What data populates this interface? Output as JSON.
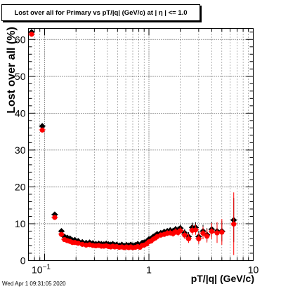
{
  "chart_data": {
    "type": "scatter",
    "title": "Lost over all for Primary vs pT/|q| (GeV/c) at |  η | <= 1.0",
    "xlabel": "pT/|q| (GeV/c)",
    "ylabel": "Lost over all (%)",
    "x_scale": "log",
    "xlim": [
      0.07,
      10
    ],
    "ylim": [
      0,
      63
    ],
    "grid": true,
    "x_ticks": [
      {
        "value": 0.1,
        "label": "10",
        "sup": "−1"
      },
      {
        "value": 1,
        "label": "1",
        "sup": ""
      },
      {
        "value": 10,
        "label": "10",
        "sup": ""
      }
    ],
    "y_ticks": [
      0,
      10,
      20,
      30,
      40,
      50,
      60
    ],
    "series": [
      {
        "color": "#000000",
        "marker": "diamond",
        "x": [
          0.075,
          0.095,
          0.125,
          0.145,
          0.155,
          0.165,
          0.175,
          0.185,
          0.195,
          0.21,
          0.23,
          0.25,
          0.27,
          0.29,
          0.31,
          0.33,
          0.35,
          0.37,
          0.39,
          0.41,
          0.43,
          0.45,
          0.47,
          0.49,
          0.52,
          0.55,
          0.58,
          0.61,
          0.64,
          0.67,
          0.7,
          0.74,
          0.78,
          0.82,
          0.86,
          0.9,
          0.95,
          1.0,
          1.05,
          1.1,
          1.15,
          1.2,
          1.3,
          1.4,
          1.5,
          1.6,
          1.7,
          1.8,
          1.9,
          2.0,
          2.2,
          2.4,
          2.6,
          2.8,
          3.0,
          3.3,
          3.6,
          4.0,
          4.5,
          5.0,
          6.5
        ],
        "y": [
          62,
          36.5,
          12.5,
          8,
          6.5,
          6.2,
          6.0,
          5.5,
          5.6,
          5.3,
          5.0,
          4.8,
          4.9,
          4.7,
          4.5,
          4.6,
          4.5,
          4.4,
          4.6,
          4.4,
          4.3,
          4.5,
          4.2,
          4.3,
          4.1,
          4.3,
          4.0,
          4.2,
          4.1,
          4.3,
          4.1,
          4.2,
          4.5,
          4.2,
          4.8,
          4.9,
          5.2,
          5.8,
          6.0,
          6.5,
          6.8,
          7.2,
          7.5,
          7.8,
          8.0,
          8.2,
          8.0,
          8.5,
          8.3,
          8.8,
          7.5,
          6.5,
          9.0,
          9.0,
          6.5,
          8.0,
          7.0,
          8.5,
          8.0,
          8.0,
          11
        ],
        "err": [
          0.5,
          0.6,
          0.5,
          0.4,
          0.3,
          0.3,
          0.3,
          0.3,
          0.3,
          0.3,
          0.3,
          0.3,
          0.3,
          0.3,
          0.3,
          0.3,
          0.3,
          0.3,
          0.3,
          0.3,
          0.3,
          0.3,
          0.3,
          0.3,
          0.3,
          0.3,
          0.3,
          0.3,
          0.3,
          0.3,
          0.3,
          0.3,
          0.4,
          0.4,
          0.4,
          0.4,
          0.5,
          0.5,
          0.5,
          0.6,
          0.6,
          0.6,
          0.7,
          0.7,
          0.8,
          0.8,
          0.9,
          0.9,
          1.0,
          1.0,
          1.1,
          1.2,
          1.3,
          1.4,
          1.5,
          1.7,
          1.8,
          2.0,
          2.3,
          2.8,
          6.0
        ]
      },
      {
        "color": "#ff0000",
        "marker": "circle",
        "x": [
          0.075,
          0.095,
          0.125,
          0.145,
          0.155,
          0.165,
          0.175,
          0.185,
          0.195,
          0.21,
          0.23,
          0.25,
          0.27,
          0.29,
          0.31,
          0.33,
          0.35,
          0.37,
          0.39,
          0.41,
          0.43,
          0.45,
          0.47,
          0.49,
          0.52,
          0.55,
          0.58,
          0.61,
          0.64,
          0.67,
          0.7,
          0.74,
          0.78,
          0.82,
          0.86,
          0.9,
          0.95,
          1.0,
          1.05,
          1.1,
          1.15,
          1.2,
          1.3,
          1.4,
          1.5,
          1.6,
          1.7,
          1.8,
          1.9,
          2.0,
          2.2,
          2.4,
          2.6,
          2.8,
          3.0,
          3.3,
          3.6,
          4.0,
          4.5,
          5.0,
          6.5
        ],
        "y": [
          61.5,
          35.5,
          11.8,
          7.2,
          5.8,
          5.5,
          5.3,
          5.0,
          5.0,
          4.8,
          4.5,
          4.3,
          4.4,
          4.2,
          4.1,
          4.2,
          4.0,
          4.0,
          4.1,
          3.9,
          3.8,
          4.0,
          3.8,
          3.9,
          3.7,
          3.8,
          3.6,
          3.8,
          3.6,
          3.8,
          3.6,
          3.7,
          3.9,
          3.7,
          4.2,
          4.3,
          4.6,
          5.2,
          5.4,
          5.9,
          6.2,
          6.6,
          7.0,
          7.2,
          7.5,
          7.6,
          7.4,
          7.9,
          7.7,
          8.2,
          7.0,
          6.0,
          8.3,
          8.4,
          6.0,
          7.5,
          6.7,
          8.0,
          7.6,
          7.8,
          10
        ],
        "err": [
          0.5,
          0.6,
          0.5,
          0.4,
          0.3,
          0.3,
          0.3,
          0.3,
          0.3,
          0.3,
          0.3,
          0.3,
          0.3,
          0.3,
          0.3,
          0.3,
          0.3,
          0.3,
          0.3,
          0.3,
          0.3,
          0.3,
          0.3,
          0.3,
          0.3,
          0.3,
          0.3,
          0.3,
          0.3,
          0.3,
          0.3,
          0.3,
          0.4,
          0.4,
          0.4,
          0.4,
          0.5,
          0.5,
          0.5,
          0.6,
          0.6,
          0.6,
          0.7,
          0.7,
          0.8,
          0.8,
          0.9,
          0.9,
          1.0,
          1.0,
          1.1,
          1.2,
          1.3,
          1.4,
          1.5,
          1.7,
          1.8,
          2.2,
          2.8,
          3.5,
          8.5
        ]
      }
    ]
  },
  "footer": {
    "timestamp": "Wed Apr  1 09:31:05 2020"
  }
}
